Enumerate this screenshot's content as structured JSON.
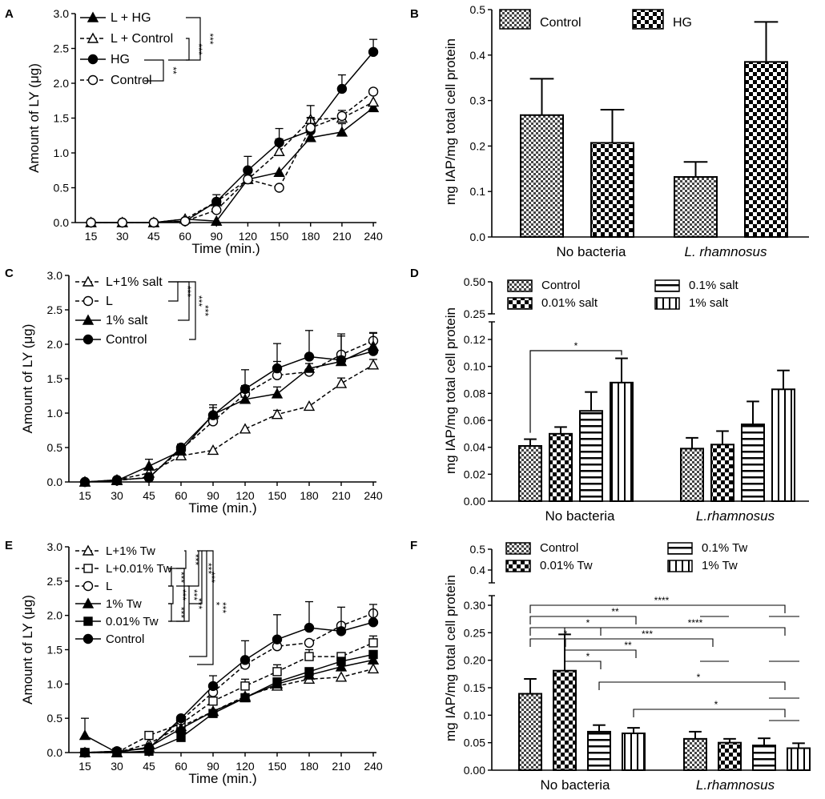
{
  "figure": {
    "panels": [
      "A",
      "B",
      "C",
      "D",
      "E",
      "F"
    ]
  },
  "chart_data": [
    {
      "panel": "A",
      "type": "line",
      "xlabel": "Time (min.)",
      "ylabel": "Amount of LY (μg)",
      "categories": [
        "15",
        "30",
        "45",
        "60",
        "90",
        "120",
        "150",
        "180",
        "210",
        "240"
      ],
      "ylim": [
        0,
        3.0
      ],
      "yticks": [
        "0.0",
        "0.5",
        "1.0",
        "1.5",
        "2.0",
        "2.5",
        "3.0"
      ],
      "series": [
        {
          "name": "L + HG",
          "marker": "triangle-filled",
          "dash": false,
          "values": [
            0,
            0,
            0,
            0.05,
            0.02,
            0.62,
            0.72,
            1.22,
            1.3,
            1.65
          ],
          "err": [
            0,
            0,
            0,
            0,
            0,
            0,
            0,
            0,
            0.12,
            0
          ]
        },
        {
          "name": "L + Control",
          "marker": "triangle-open",
          "dash": true,
          "values": [
            0,
            0,
            0,
            0.05,
            0.3,
            0.62,
            1.02,
            1.48,
            1.5,
            1.73
          ],
          "err": [
            0,
            0,
            0,
            0,
            0,
            0.1,
            0.18,
            0.2,
            0,
            0
          ]
        },
        {
          "name": "HG",
          "marker": "circle-filled",
          "dash": false,
          "values": [
            0,
            0,
            0,
            0.02,
            0.3,
            0.75,
            1.15,
            1.32,
            1.92,
            2.45
          ],
          "err": [
            0,
            0,
            0,
            0,
            0.1,
            0.2,
            0.2,
            0.18,
            0.2,
            0.18
          ]
        },
        {
          "name": "Control",
          "marker": "circle-open",
          "dash": true,
          "values": [
            0,
            0,
            0,
            0.02,
            0.18,
            0.62,
            0.5,
            1.36,
            1.53,
            1.88
          ],
          "err": [
            0,
            0,
            0,
            0,
            0,
            0.06,
            0,
            0.15,
            0.08,
            0
          ]
        }
      ],
      "significance": [
        "***",
        "***",
        "**"
      ]
    },
    {
      "panel": "B",
      "type": "bar",
      "ylabel": "mg IAP/mg total cell protein",
      "groups": [
        "No bacteria",
        "L. rhamnosus"
      ],
      "ylim": [
        0,
        0.5
      ],
      "yticks": [
        "0.0",
        "0.1",
        "0.2",
        "0.3",
        "0.4",
        "0.5"
      ],
      "series": [
        {
          "name": "Control",
          "values": [
            0.268,
            0.132
          ],
          "err": [
            0.08,
            0.033
          ]
        },
        {
          "name": "HG",
          "values": [
            0.207,
            0.385
          ],
          "err": [
            0.073,
            0.088
          ]
        }
      ]
    },
    {
      "panel": "C",
      "type": "line",
      "xlabel": "Time (min.)",
      "ylabel": "Amount of LY (μg)",
      "categories": [
        "15",
        "30",
        "45",
        "60",
        "90",
        "120",
        "150",
        "180",
        "210",
        "240"
      ],
      "ylim": [
        0,
        3.0
      ],
      "yticks": [
        "0.0",
        "0.5",
        "1.0",
        "1.5",
        "2.0",
        "2.5",
        "3.0"
      ],
      "series": [
        {
          "name": "L+1% salt",
          "marker": "triangle-open",
          "dash": true,
          "values": [
            0,
            0.03,
            0.13,
            0.38,
            0.46,
            0.77,
            0.98,
            1.1,
            1.43,
            1.7
          ],
          "err": [
            0,
            0,
            0,
            0,
            0,
            0,
            0.06,
            0,
            0.08,
            0.08
          ]
        },
        {
          "name": "L",
          "marker": "circle-open",
          "dash": true,
          "values": [
            0,
            0.02,
            0.07,
            0.47,
            0.88,
            1.28,
            1.55,
            1.6,
            1.85,
            2.05
          ],
          "err": [
            0,
            0,
            0,
            0,
            0.08,
            0.12,
            0.2,
            0.12,
            0.3,
            0.12
          ]
        },
        {
          "name": "1% salt",
          "marker": "triangle-filled",
          "dash": false,
          "values": [
            0,
            0.02,
            0.23,
            0.45,
            0.98,
            1.2,
            1.28,
            1.65,
            1.75,
            1.97
          ],
          "err": [
            0,
            0,
            0.1,
            0,
            0.1,
            0.1,
            0.1,
            0,
            0,
            0
          ]
        },
        {
          "name": "Control",
          "marker": "circle-filled",
          "dash": false,
          "values": [
            0,
            0.03,
            0.06,
            0.5,
            0.97,
            1.35,
            1.65,
            1.82,
            1.77,
            1.9
          ],
          "err": [
            0,
            0,
            0,
            0.05,
            0.15,
            0.28,
            0.36,
            0.38,
            0.35,
            0.26
          ]
        }
      ],
      "significance": [
        "***",
        "***",
        "***"
      ]
    },
    {
      "panel": "D",
      "type": "bar",
      "ylabel": "mg IAP/mg total cell protein",
      "groups": [
        "No bacteria",
        "L.rhamnosus"
      ],
      "yticks_lower": [
        "0.00",
        "0.02",
        "0.04",
        "0.06",
        "0.08",
        "0.10",
        "0.12"
      ],
      "yticks_upper": [
        "0.25",
        "0.50"
      ],
      "series": [
        {
          "name": "Control",
          "values": [
            0.041,
            0.039
          ],
          "err": [
            0.005,
            0.008
          ]
        },
        {
          "name": "0.01% salt",
          "values": [
            0.05,
            0.042
          ],
          "err": [
            0.005,
            0.01
          ]
        },
        {
          "name": "0.1% salt",
          "values": [
            0.067,
            0.057
          ],
          "err": [
            0.014,
            0.017
          ]
        },
        {
          "name": "1% salt",
          "values": [
            0.088,
            0.083
          ],
          "err": [
            0.018,
            0.014
          ]
        }
      ],
      "significance": [
        "*"
      ]
    },
    {
      "panel": "E",
      "type": "line",
      "xlabel": "Time (min.)",
      "ylabel": "Amount of LY (μg)",
      "categories": [
        "15",
        "30",
        "45",
        "60",
        "90",
        "120",
        "150",
        "180",
        "210",
        "240"
      ],
      "ylim": [
        0,
        3.0
      ],
      "yticks": [
        "0.0",
        "0.5",
        "1.0",
        "1.5",
        "2.0",
        "2.5",
        "3.0"
      ],
      "series": [
        {
          "name": "L+1% Tw",
          "marker": "triangle-open",
          "dash": true,
          "values": [
            0,
            0,
            0.13,
            0.38,
            0.6,
            0.82,
            0.97,
            1.07,
            1.1,
            1.22
          ],
          "err": [
            0,
            0,
            0,
            0,
            0,
            0,
            0,
            0,
            0,
            0
          ]
        },
        {
          "name": "L+0.01% Tw",
          "marker": "square-open",
          "dash": true,
          "values": [
            0,
            0,
            0.25,
            0.42,
            0.75,
            0.97,
            1.18,
            1.4,
            1.4,
            1.6
          ],
          "err": [
            0,
            0,
            0,
            0,
            0.1,
            0.1,
            0.1,
            0.1,
            0,
            0.1
          ]
        },
        {
          "name": "L",
          "marker": "circle-open",
          "dash": true,
          "values": [
            0,
            0.02,
            0.07,
            0.47,
            0.88,
            1.28,
            1.55,
            1.6,
            1.85,
            2.03
          ],
          "err": [
            0,
            0,
            0,
            0,
            0,
            0,
            0,
            0,
            0,
            0
          ]
        },
        {
          "name": "1% Tw",
          "marker": "triangle-filled",
          "dash": false,
          "values": [
            0.25,
            0,
            0.08,
            0.35,
            0.6,
            0.8,
            1.0,
            1.13,
            1.25,
            1.35
          ],
          "err": [
            0.25,
            0,
            0,
            0,
            0,
            0,
            0,
            0,
            0,
            0
          ]
        },
        {
          "name": "0.01% Tw",
          "marker": "square-filled",
          "dash": false,
          "values": [
            0,
            0,
            0.02,
            0.22,
            0.57,
            0.8,
            1.03,
            1.18,
            1.33,
            1.43
          ],
          "err": [
            0,
            0,
            0,
            0,
            0,
            0,
            0,
            0,
            0,
            0
          ]
        },
        {
          "name": "Control",
          "marker": "circle-filled",
          "dash": false,
          "values": [
            0,
            0.02,
            0.06,
            0.5,
            0.97,
            1.35,
            1.65,
            1.82,
            1.77,
            1.9
          ],
          "err": [
            0,
            0,
            0,
            0,
            0.15,
            0.28,
            0.36,
            0.38,
            0.35,
            0.26
          ]
        }
      ],
      "significance": [
        "***",
        "***",
        "***",
        "***",
        "***",
        "***",
        "***",
        "***",
        "*",
        "***"
      ]
    },
    {
      "panel": "F",
      "type": "bar",
      "ylabel": "mg IAP/mg total cell protein",
      "groups": [
        "No bacteria",
        "L.rhamnosus"
      ],
      "yticks_lower": [
        "0.00",
        "0.05",
        "0.10",
        "0.15",
        "0.20",
        "0.25",
        "0.30"
      ],
      "yticks_upper": [
        "0.4",
        "0.5"
      ],
      "series": [
        {
          "name": "Control",
          "values": [
            0.139,
            0.057
          ],
          "err": [
            0.027,
            0.013
          ]
        },
        {
          "name": "0.01% Tw",
          "values": [
            0.181,
            0.05
          ],
          "err": [
            0.066,
            0.007
          ]
        },
        {
          "name": "0.1% Tw",
          "values": [
            0.07,
            0.045
          ],
          "err": [
            0.012,
            0.013
          ]
        },
        {
          "name": "1% Tw",
          "values": [
            0.067,
            0.04
          ],
          "err": [
            0.01,
            0.009
          ]
        }
      ],
      "significance": [
        "****",
        "**",
        "*",
        "*",
        "****",
        "***",
        "**",
        "*",
        "*",
        "*"
      ]
    }
  ]
}
